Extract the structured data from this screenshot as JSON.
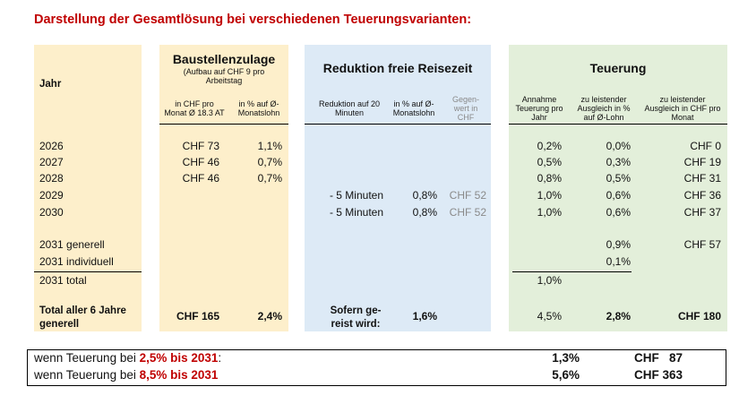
{
  "title": "Darstellung der Gesamtlösung bei verschiedenen Teuerungsvarianten:",
  "headers": {
    "jahr": "Jahr",
    "baustellen": "Baustellenzulage",
    "baustellen_note": "(Aufbau auf CHF 9 pro Arbeitstag",
    "baustellen_chf": "in CHF pro Monat Ø 18.3 AT",
    "baustellen_pct": "in % auf Ø-Monatslohn",
    "reduktion": "Reduktion freie Reisezeit",
    "reduktion_min": "Reduktion auf 20 Minuten",
    "reduktion_pct": "in % auf Ø-Monatslohn",
    "reduktion_chf": "Gegen-wert in CHF",
    "teuerung": "Teuerung",
    "teuerung_annahme": "Annahme Teuerung pro Jahr",
    "teuerung_pct": "zu leistender Ausgleich in % auf Ø-Lohn",
    "teuerung_chf": "zu leistender Ausgleich in CHF pro Monat"
  },
  "rows": [
    {
      "jahr": "2026",
      "b_chf": "CHF 73",
      "b_pct": "1,1%",
      "r_min": "",
      "r_pct": "",
      "r_chf": "",
      "t_ann": "0,2%",
      "t_pct": "0,0%",
      "t_chf": "CHF 0"
    },
    {
      "jahr": "2027",
      "b_chf": "CHF 46",
      "b_pct": "0,7%",
      "r_min": "",
      "r_pct": "",
      "r_chf": "",
      "t_ann": "0,5%",
      "t_pct": "0,3%",
      "t_chf": "CHF 19"
    },
    {
      "jahr": "2028",
      "b_chf": "CHF 46",
      "b_pct": "0,7%",
      "r_min": "",
      "r_pct": "",
      "r_chf": "",
      "t_ann": "0,8%",
      "t_pct": "0,5%",
      "t_chf": "CHF 31"
    },
    {
      "jahr": "2029",
      "b_chf": "",
      "b_pct": "",
      "r_min": "- 5 Minuten",
      "r_pct": "0,8%",
      "r_chf": "CHF 52",
      "t_ann": "1,0%",
      "t_pct": "0,6%",
      "t_chf": "CHF 36"
    },
    {
      "jahr": "2030",
      "b_chf": "",
      "b_pct": "",
      "r_min": "- 5 Minuten",
      "r_pct": "0,8%",
      "r_chf": "CHF 52",
      "t_ann": "1,0%",
      "t_pct": "0,6%",
      "t_chf": "CHF 37"
    },
    {
      "jahr": "2031 generell",
      "b_chf": "",
      "b_pct": "",
      "r_min": "",
      "r_pct": "",
      "r_chf": "",
      "t_ann": "",
      "t_pct": "0,9%",
      "t_chf": "CHF 57"
    },
    {
      "jahr": "2031 individuell",
      "b_chf": "",
      "b_pct": "",
      "r_min": "",
      "r_pct": "",
      "r_chf": "",
      "t_ann": "",
      "t_pct": "0,1%",
      "t_chf": ""
    },
    {
      "jahr": "2031 total",
      "b_chf": "",
      "b_pct": "",
      "r_min": "",
      "r_pct": "",
      "r_chf": "",
      "t_ann": "1,0%",
      "t_pct": "",
      "t_chf": ""
    }
  ],
  "total": {
    "label": "Total aller 6 Jahre generell",
    "b_chf": "CHF 165",
    "b_pct": "2,4%",
    "r_label": "Sofern ge-reist wird:",
    "r_pct": "1,6%",
    "t_ann": "4,5%",
    "t_pct": "2,8%",
    "t_chf": "CHF 180"
  },
  "scenarios": [
    {
      "prefix": "wenn Teuerung bei ",
      "highlight": "2,5% bis 2031",
      "suffix": ":",
      "pct": "1,3%",
      "chf": "CHF   87"
    },
    {
      "prefix": "wenn Teuerung bei ",
      "highlight": "8,5% bis 2031",
      "suffix": "",
      "pct": "5,6%",
      "chf": "CHF 363"
    }
  ]
}
